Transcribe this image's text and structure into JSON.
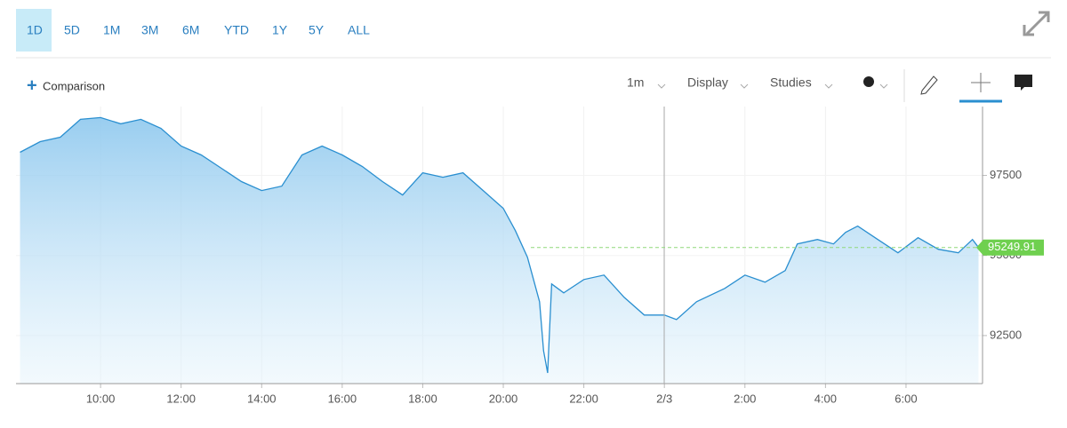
{
  "toolbar": {
    "ranges": [
      "1D",
      "5D",
      "1M",
      "3M",
      "6M",
      "YTD",
      "1Y",
      "5Y",
      "ALL"
    ]
  },
  "controls": {
    "comparison": "Comparison",
    "interval": "1m",
    "display": "Display",
    "studies": "Studies"
  },
  "chart_data": {
    "type": "line",
    "color": "#2a8fd0",
    "grid": true,
    "x": [
      8.0,
      8.5,
      9.0,
      9.5,
      10.0,
      10.5,
      11.0,
      11.5,
      12.0,
      12.5,
      13.0,
      13.5,
      14.0,
      14.5,
      15.0,
      15.5,
      16.0,
      16.5,
      17.0,
      17.5,
      18.0,
      18.5,
      19.0,
      19.5,
      20.0,
      20.3,
      20.6,
      20.9,
      21.0,
      21.1,
      21.2,
      21.5,
      22.0,
      22.5,
      23.0,
      23.5,
      24.0,
      24.3,
      24.8,
      25.5,
      26.0,
      26.5,
      27.0,
      27.3,
      27.8,
      28.2,
      28.5,
      28.8,
      29.3,
      29.8,
      30.3,
      30.8,
      31.3,
      31.65,
      31.8
    ],
    "values": [
      98222,
      98556,
      98694,
      99250,
      99306,
      99111,
      99250,
      98972,
      98417,
      98139,
      97722,
      97306,
      97028,
      97167,
      98139,
      98417,
      98139,
      97778,
      97306,
      96889,
      97583,
      97444,
      97583,
      97028,
      96472,
      95778,
      94944,
      93556,
      92028,
      91333,
      94111,
      93833,
      94250,
      94389,
      93694,
      93139,
      93139,
      93000,
      93556,
      93972,
      94389,
      94167,
      94528,
      95361,
      95500,
      95361,
      95722,
      95917,
      95500,
      95083,
      95556,
      95194,
      95083,
      95500,
      95249.91
    ],
    "xlim": [
      7.9,
      31.9
    ],
    "ylim": [
      91000,
      99650
    ],
    "xticks": [
      {
        "value": 10,
        "label": "10:00"
      },
      {
        "value": 12,
        "label": "12:00"
      },
      {
        "value": 14,
        "label": "14:00"
      },
      {
        "value": 16,
        "label": "16:00"
      },
      {
        "value": 18,
        "label": "18:00"
      },
      {
        "value": 20,
        "label": "20:00"
      },
      {
        "value": 22,
        "label": "22:00"
      },
      {
        "value": 24,
        "label": "2/3"
      },
      {
        "value": 26,
        "label": "2:00"
      },
      {
        "value": 28,
        "label": "4:00"
      },
      {
        "value": 30,
        "label": "6:00"
      }
    ],
    "yticks": [
      92500,
      95000,
      97500
    ]
  }
}
